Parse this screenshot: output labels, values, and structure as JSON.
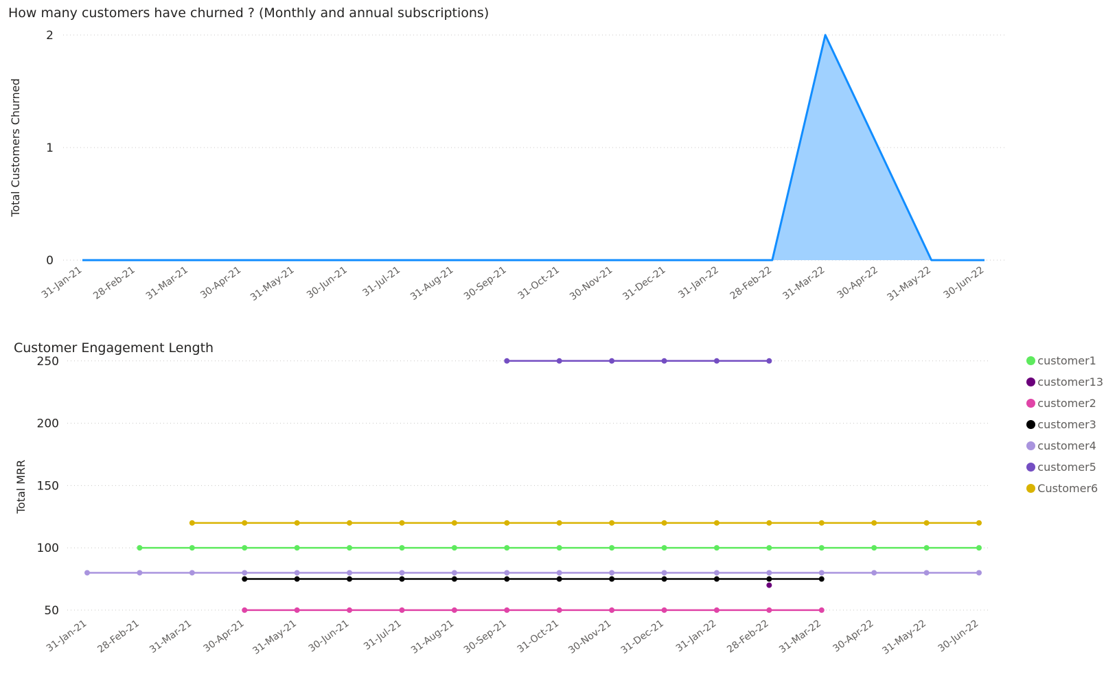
{
  "chart_data": [
    {
      "type": "area",
      "title": "How many customers have churned ? (Monthly and annual subscriptions)",
      "xlabel": "",
      "ylabel": "Total Customers Churned",
      "categories": [
        "31-Jan-21",
        "28-Feb-21",
        "31-Mar-21",
        "30-Apr-21",
        "31-May-21",
        "30-Jun-21",
        "31-Jul-21",
        "31-Aug-21",
        "30-Sep-21",
        "31-Oct-21",
        "30-Nov-21",
        "31-Dec-21",
        "31-Jan-22",
        "28-Feb-22",
        "31-Mar-22",
        "30-Apr-22",
        "31-May-22",
        "30-Jun-22"
      ],
      "ylim": [
        0,
        2
      ],
      "yticks": [
        0,
        1,
        2
      ],
      "grid": true,
      "series": [
        {
          "name": "",
          "color": "#118dff",
          "fill": "#a0d1ff",
          "values": [
            0,
            0,
            0,
            0,
            0,
            0,
            0,
            0,
            0,
            0,
            0,
            0,
            0,
            0,
            2,
            1,
            0,
            0
          ]
        }
      ]
    },
    {
      "type": "line",
      "title": "Customer Engagement Length",
      "xlabel": "",
      "ylabel": "Total MRR",
      "categories": [
        "31-Jan-21",
        "28-Feb-21",
        "31-Mar-21",
        "30-Apr-21",
        "31-May-21",
        "30-Jun-21",
        "31-Jul-21",
        "31-Aug-21",
        "30-Sep-21",
        "31-Oct-21",
        "30-Nov-21",
        "31-Dec-21",
        "31-Jan-22",
        "28-Feb-22",
        "31-Mar-22",
        "30-Apr-22",
        "31-May-22",
        "30-Jun-22"
      ],
      "ylim": [
        45,
        262
      ],
      "yticks": [
        50,
        100,
        150,
        200,
        250
      ],
      "grid": true,
      "legend_position": "right",
      "series": [
        {
          "name": "customer1",
          "color": "#5eea5e",
          "values": [
            null,
            100,
            100,
            100,
            100,
            100,
            100,
            100,
            100,
            100,
            100,
            100,
            100,
            100,
            100,
            100,
            100,
            100
          ]
        },
        {
          "name": "customer13",
          "color": "#6b007b",
          "values": [
            null,
            null,
            null,
            null,
            null,
            null,
            null,
            null,
            null,
            null,
            null,
            null,
            null,
            70,
            null,
            null,
            null,
            null
          ]
        },
        {
          "name": "customer2",
          "color": "#e044a7",
          "values": [
            null,
            null,
            null,
            50,
            50,
            50,
            50,
            50,
            50,
            50,
            50,
            50,
            50,
            50,
            50,
            null,
            null,
            null
          ]
        },
        {
          "name": "customer3",
          "color": "#000000",
          "values": [
            null,
            null,
            null,
            75,
            75,
            75,
            75,
            75,
            75,
            75,
            75,
            75,
            75,
            75,
            75,
            null,
            null,
            null
          ]
        },
        {
          "name": "customer4",
          "color": "#a994de",
          "values": [
            80,
            80,
            80,
            80,
            80,
            80,
            80,
            80,
            80,
            80,
            80,
            80,
            80,
            80,
            80,
            80,
            80,
            80
          ]
        },
        {
          "name": "customer5",
          "color": "#744ec2",
          "values": [
            null,
            null,
            null,
            null,
            null,
            null,
            null,
            null,
            250,
            250,
            250,
            250,
            250,
            250,
            null,
            null,
            null,
            null
          ]
        },
        {
          "name": "Customer6",
          "color": "#d9b300",
          "values": [
            null,
            null,
            120,
            120,
            120,
            120,
            120,
            120,
            120,
            120,
            120,
            120,
            120,
            120,
            120,
            120,
            120,
            120
          ]
        }
      ]
    }
  ]
}
